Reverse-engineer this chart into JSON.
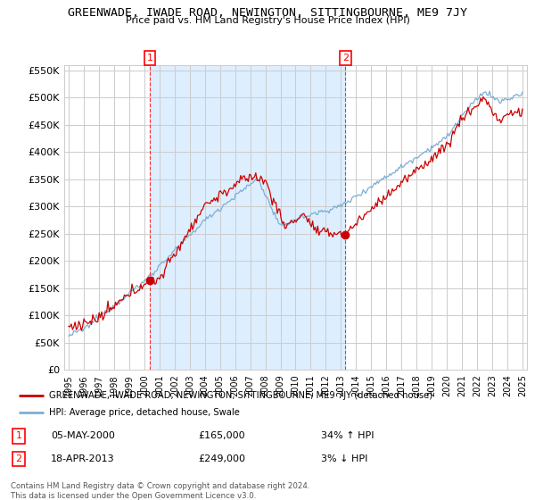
{
  "title": "GREENWADE, IWADE ROAD, NEWINGTON, SITTINGBOURNE, ME9 7JY",
  "subtitle": "Price paid vs. HM Land Registry's House Price Index (HPI)",
  "ylabel_ticks": [
    "£0",
    "£50K",
    "£100K",
    "£150K",
    "£200K",
    "£250K",
    "£300K",
    "£350K",
    "£400K",
    "£450K",
    "£500K",
    "£550K"
  ],
  "ylim": [
    0,
    560000
  ],
  "yticks": [
    0,
    50000,
    100000,
    150000,
    200000,
    250000,
    300000,
    350000,
    400000,
    450000,
    500000,
    550000
  ],
  "xlim_start": 1994.7,
  "xlim_end": 2025.3,
  "hpi_color": "#7bafd4",
  "price_color": "#cc0000",
  "shade_color": "#ddeeff",
  "background_color": "#ffffff",
  "grid_color": "#cccccc",
  "ann1_x": 2000.35,
  "ann1_y": 165000,
  "ann2_x": 2013.29,
  "ann2_y": 249000,
  "legend_line1": "GREENWADE, IWADE ROAD, NEWINGTON, SITTINGBOURNE, ME9 7JY (detached house)",
  "legend_line2": "HPI: Average price, detached house, Swale",
  "footer": "Contains HM Land Registry data © Crown copyright and database right 2024.\nThis data is licensed under the Open Government Licence v3.0.",
  "table_row1": [
    "1",
    "05-MAY-2000",
    "£165,000",
    "34% ↑ HPI"
  ],
  "table_row2": [
    "2",
    "18-APR-2013",
    "£249,000",
    "3% ↓ HPI"
  ]
}
